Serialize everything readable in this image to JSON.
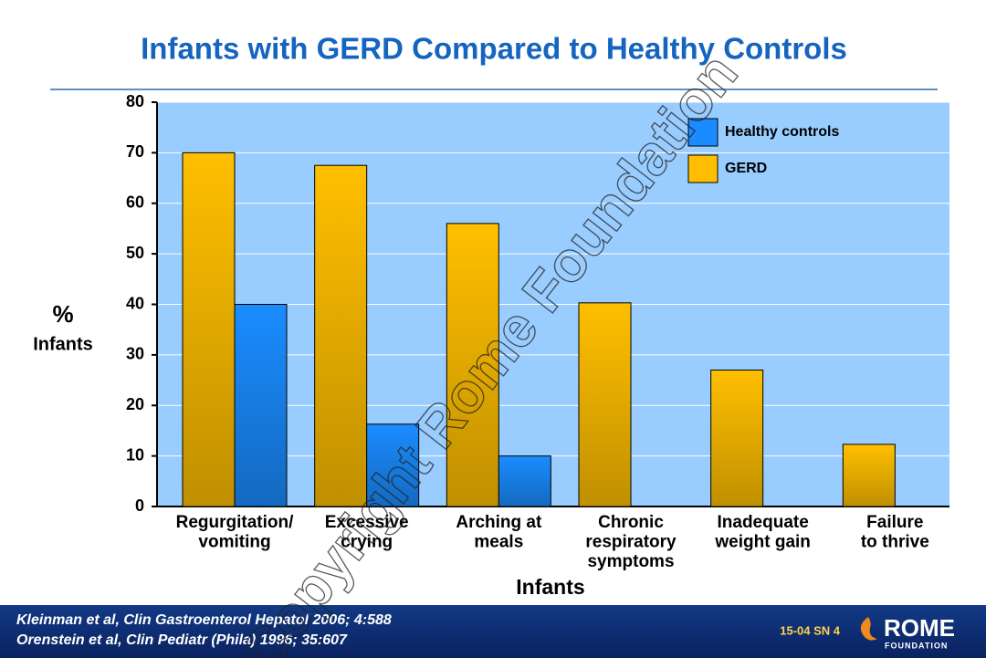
{
  "chart_data": {
    "type": "bar",
    "title": "Infants with GERD Compared to Healthy Controls",
    "ylabel": [
      "%",
      "Infants"
    ],
    "xlabel": "Infants",
    "categories": [
      [
        "Regurgitation/",
        "vomiting"
      ],
      [
        "Excessive",
        "crying"
      ],
      [
        "Arching at",
        "meals"
      ],
      [
        "Chronic",
        "respiratory",
        "symptoms"
      ],
      [
        "Inadequate",
        "weight gain"
      ],
      [
        "Failure",
        "to thrive"
      ]
    ],
    "series": [
      {
        "name": "GERD",
        "color": "#ffbf00",
        "values": [
          70,
          67.5,
          56,
          40.3,
          27,
          12.3
        ]
      },
      {
        "name": "Healthy controls",
        "color": "#1a8cff",
        "values": [
          40,
          16.3,
          10,
          null,
          null,
          null
        ]
      }
    ],
    "ylim": [
      0,
      80
    ],
    "yticks": [
      0,
      10,
      20,
      30,
      40,
      50,
      60,
      70,
      80
    ],
    "grid": true,
    "legend": "top-right",
    "legend_order": [
      1,
      0
    ],
    "plot_background": "#99ccff",
    "footer": {
      "references": [
        "Kleinman et al, Clin Gastroenterol Hepatol 2006; 4:588",
        "Orenstein et al, Clin Pediatr (Phila) 1996; 35:607"
      ],
      "slide_id": "15-04  SN 4",
      "logo": [
        "ROME",
        "FOUNDATION"
      ]
    },
    "watermark": "Copyright Rome Foundation"
  }
}
